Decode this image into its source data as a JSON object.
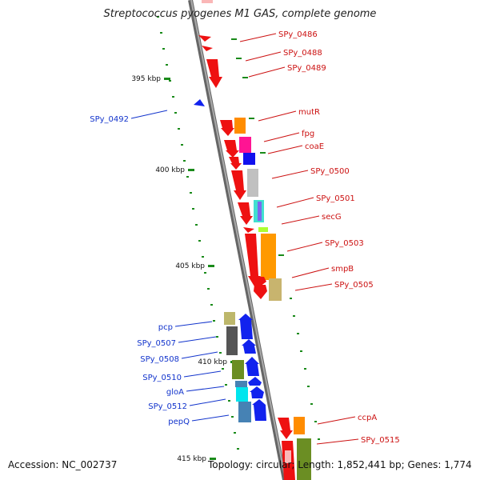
{
  "title": "Streptococcus pyogenes M1 GAS, complete genome",
  "footer": {
    "accession": "Accession: NC_002737",
    "summary": "Topology: circular; Length: 1,852,441 bp; Genes: 1,774"
  },
  "colors": {
    "forward_strand": "#ee1111",
    "reverse_strand": "#1122ee",
    "forward_label": "#cc1111",
    "reverse_label": "#1133cc",
    "backbone": "#888888",
    "scale_tick": "#1a8a1a"
  },
  "scale": {
    "labels": [
      "395 kbp",
      "400 kbp",
      "405 kbp",
      "410 kbp",
      "415 kbp"
    ]
  },
  "forward_genes": [
    "SPy_0486",
    "SPy_0488",
    "SPy_0489",
    "mutR",
    "fpg",
    "coaE",
    "SPy_0500",
    "SPy_0501",
    "secG",
    "SPy_0503",
    "smpB",
    "SPy_0505",
    "ccpA",
    "SPy_0515"
  ],
  "reverse_genes": [
    "SPy_0492",
    "pcp",
    "SPy_0507",
    "SPy_0508",
    "SPy_0510",
    "gloA",
    "SPy_0512",
    "pepQ"
  ],
  "cog_colors": [
    "#ff8c00",
    "#ff1493",
    "#1111ee",
    "#c0c0c0",
    "#40e0d0",
    "#7b68ee",
    "#adff2f",
    "#ff9900",
    "#c8b46e",
    "#bdb76b",
    "#556b2f",
    "#00e5ee",
    "#4682b4",
    "#6b8e23"
  ]
}
